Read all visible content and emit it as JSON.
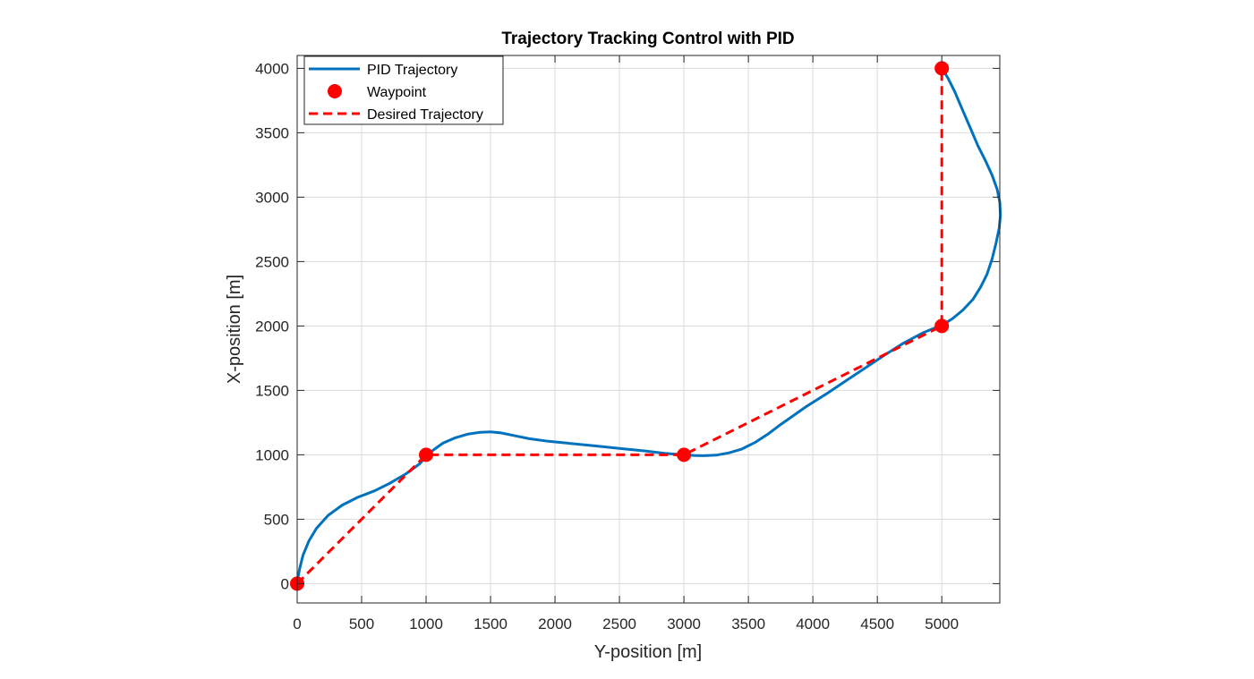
{
  "chart_data": {
    "type": "line",
    "title": "Trajectory Tracking Control with PID",
    "xlabel": "Y-position [m]",
    "ylabel": "X-position [m]",
    "xlim": [
      0,
      5450
    ],
    "ylim": [
      -150,
      4100
    ],
    "xticks": [
      0,
      500,
      1000,
      1500,
      2000,
      2500,
      3000,
      3500,
      4000,
      4500,
      5000
    ],
    "yticks": [
      0,
      500,
      1000,
      1500,
      2000,
      2500,
      3000,
      3500,
      4000
    ],
    "grid": true,
    "legend_location": "top-left",
    "series": [
      {
        "name": "PID Trajectory",
        "color": "#0072BD",
        "style": "solid",
        "x": [
          0,
          5,
          20,
          45,
          90,
          150,
          240,
          350,
          470,
          600,
          720,
          840,
          950,
          1000,
          1060,
          1130,
          1220,
          1320,
          1420,
          1500,
          1580,
          1680,
          1800,
          1950,
          2100,
          2300,
          2500,
          2700,
          2850,
          2960,
          3000,
          3080,
          3150,
          3250,
          3350,
          3450,
          3550,
          3650,
          3750,
          3850,
          3950,
          4100,
          4250,
          4400,
          4550,
          4700,
          4850,
          4960,
          5000,
          5080,
          5160,
          5240,
          5300,
          5350,
          5390,
          5420,
          5445,
          5455,
          5450,
          5430,
          5390,
          5340,
          5280,
          5220,
          5160,
          5100,
          5050,
          5015,
          5000
        ],
        "y": [
          0,
          40,
          120,
          220,
          330,
          430,
          530,
          610,
          670,
          720,
          780,
          850,
          930,
          990,
          1040,
          1090,
          1130,
          1160,
          1175,
          1178,
          1170,
          1150,
          1125,
          1105,
          1090,
          1070,
          1050,
          1030,
          1012,
          1003,
          1000,
          995,
          993,
          997,
          1015,
          1045,
          1095,
          1160,
          1235,
          1305,
          1375,
          1470,
          1570,
          1670,
          1770,
          1865,
          1945,
          1990,
          2005,
          2055,
          2120,
          2205,
          2300,
          2400,
          2520,
          2640,
          2760,
          2860,
          2960,
          3060,
          3170,
          3280,
          3400,
          3540,
          3680,
          3820,
          3920,
          3980,
          4000
        ]
      },
      {
        "name": "Waypoint",
        "color": "#FF0000",
        "style": "marker",
        "x": [
          0,
          1000,
          3000,
          5000,
          5000
        ],
        "y": [
          0,
          1000,
          1000,
          2000,
          4000
        ]
      },
      {
        "name": "Desired Trajectory",
        "color": "#FF0000",
        "style": "dashed",
        "x": [
          0,
          1000,
          3000,
          5000,
          5000
        ],
        "y": [
          0,
          1000,
          1000,
          2000,
          4000
        ]
      }
    ]
  }
}
